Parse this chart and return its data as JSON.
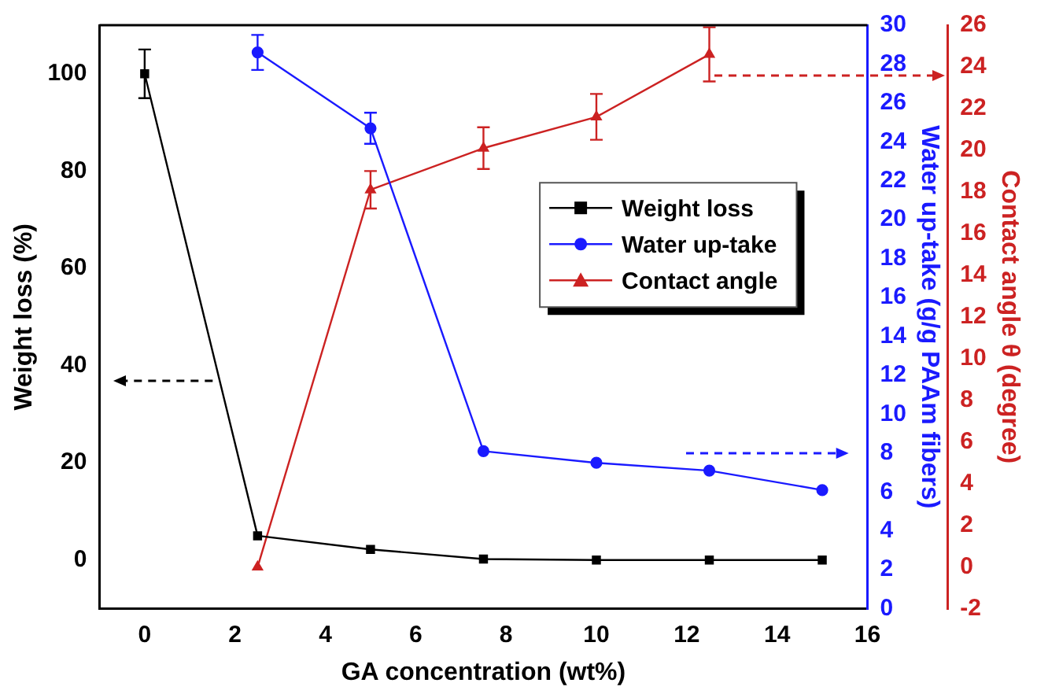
{
  "chart_data": {
    "type": "line",
    "xlabel": "GA concentration (wt%)",
    "ylabel": "Weight loss (%)",
    "y2label": "Water up-take (g/g PAAm fibers)",
    "y3label": "Contact angle θ (degree)",
    "xlim": [
      -1,
      16
    ],
    "xticks": [
      0,
      2,
      4,
      6,
      8,
      10,
      12,
      14,
      16
    ],
    "ylim": [
      -10,
      110
    ],
    "yticks": [
      0,
      20,
      40,
      60,
      80,
      100
    ],
    "y2lim": [
      0,
      30
    ],
    "y2ticks": [
      0,
      2,
      4,
      6,
      8,
      10,
      12,
      14,
      16,
      18,
      20,
      22,
      24,
      26,
      28,
      30
    ],
    "y3lim": [
      -2,
      26
    ],
    "y3ticks": [
      -2,
      0,
      2,
      4,
      6,
      8,
      10,
      12,
      14,
      16,
      18,
      20,
      22,
      24,
      26
    ],
    "grid": false,
    "legend": "top right",
    "line_style": "solid",
    "series": [
      {
        "name": "Weight loss",
        "color": "#000000",
        "marker": "square",
        "x": [
          0,
          2.5,
          5,
          7.5,
          10,
          12.5,
          15
        ],
        "values": [
          100,
          5,
          2.2,
          0.2,
          0,
          0,
          0
        ],
        "errors": [
          5,
          null,
          null,
          null,
          null,
          null,
          null
        ]
      },
      {
        "name": "Water up-take",
        "color": "#1a1aff",
        "marker": "circle",
        "axis": "y2",
        "x": [
          2.5,
          5,
          7.5,
          10,
          12.5,
          15
        ],
        "values": [
          28.6,
          24.7,
          8.1,
          7.5,
          7.1,
          6.1
        ],
        "errors": [
          0.9,
          0.8,
          null,
          null,
          null,
          null
        ]
      },
      {
        "name": "Contact angle",
        "color": "#cc2222",
        "marker": "triangle",
        "axis": "y3",
        "x": [
          2.5,
          5,
          7.5,
          10,
          12.5
        ],
        "values": [
          0,
          18.1,
          20.1,
          21.6,
          24.6
        ],
        "errors": [
          null,
          0.9,
          1,
          1.1,
          1.3
        ]
      }
    ]
  }
}
